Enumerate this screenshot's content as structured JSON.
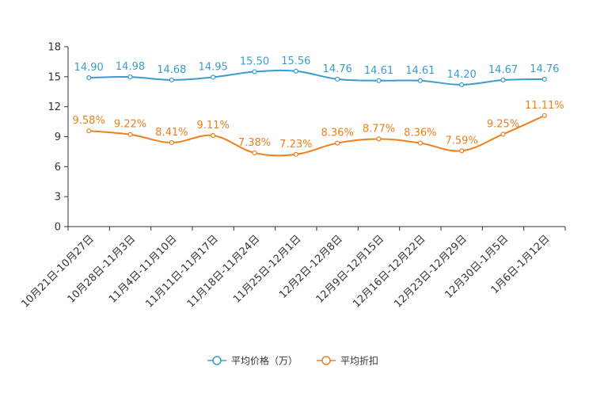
{
  "chart_data": {
    "type": "line",
    "categories": [
      "10月21日-10月27日",
      "10月28日-11月3日",
      "11月4日-11月10日",
      "11月11日-11月17日",
      "11月18日-11月24日",
      "11月25日-12月1日",
      "12月2日-12月8日",
      "12月9日-12月15日",
      "12月16日-12月22日",
      "12月23日-12月29日",
      "12月30日-1月5日",
      "1月6日-1月12日"
    ],
    "ylim": [
      0,
      18
    ],
    "yticks": [
      0,
      3,
      6,
      9,
      12,
      15,
      18
    ],
    "series": [
      {
        "name": "平均价格（万）",
        "color": "#3a9ccf",
        "values": [
          14.9,
          14.98,
          14.68,
          14.95,
          15.5,
          15.56,
          14.76,
          14.61,
          14.61,
          14.2,
          14.67,
          14.76
        ],
        "labels": [
          "14.90",
          "14.98",
          "14.68",
          "14.95",
          "15.50",
          "15.56",
          "14.76",
          "14.61",
          "14.61",
          "14.20",
          "14.67",
          "14.76"
        ]
      },
      {
        "name": "平均折扣",
        "color": "#f07e1a",
        "values": [
          9.58,
          9.22,
          8.41,
          9.11,
          7.38,
          7.23,
          8.36,
          8.77,
          8.36,
          7.59,
          9.25,
          11.11
        ],
        "labels": [
          "9.58%",
          "9.22%",
          "8.41%",
          "9.11%",
          "7.38%",
          "7.23%",
          "8.36%",
          "8.77%",
          "8.36%",
          "7.59%",
          "9.25%",
          "11.11%"
        ]
      }
    ],
    "legend": {
      "position": "bottom-center"
    }
  }
}
